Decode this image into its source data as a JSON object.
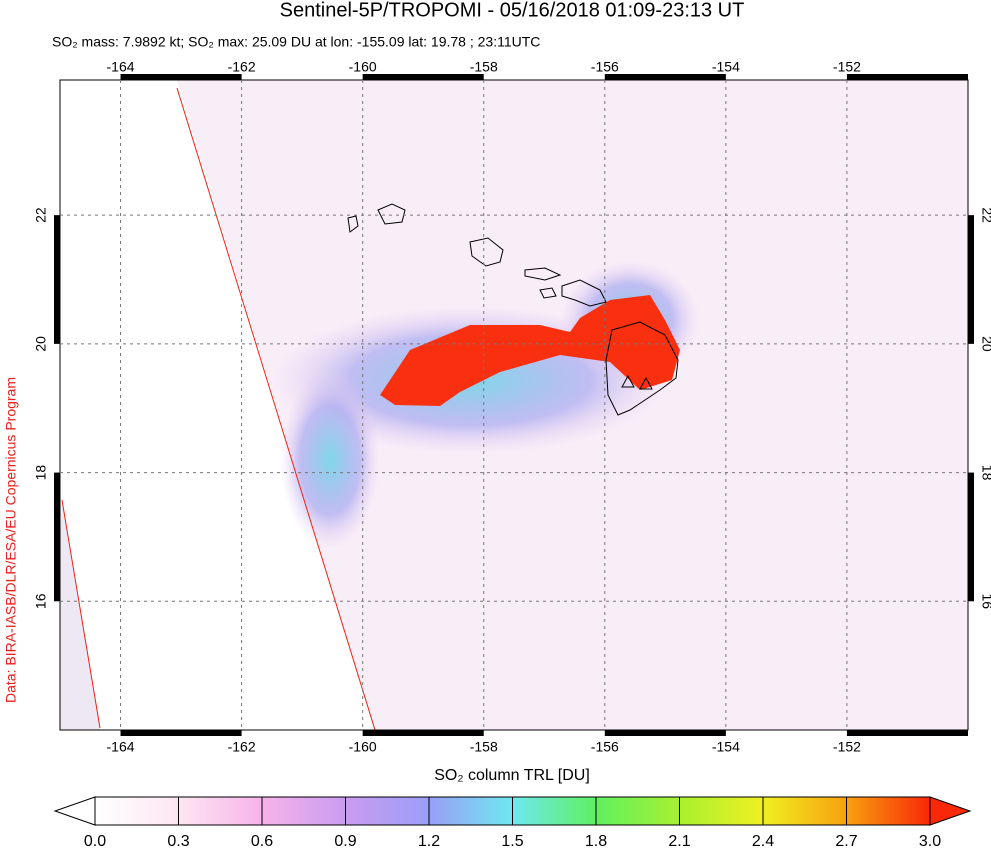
{
  "title": "Sentinel-5P/TROPOMI - 05/16/2018 01:09-23:13 UT",
  "subtitle": "SO₂ mass: 7.9892 kt; SO₂ max: 25.09 DU at lon: -155.09 lat: 19.78 ; 23:11UTC",
  "credit": "Data: BIRA-IASB/DLR/ESA/EU Copernicus Program",
  "map": {
    "xlim": [
      -165,
      -150
    ],
    "ylim": [
      14,
      24.1
    ],
    "xticks": [
      -164,
      -162,
      -160,
      -158,
      -156,
      -154,
      -152
    ],
    "yticks": [
      16,
      18,
      20,
      22
    ]
  },
  "colorbar": {
    "label": "SO₂ column TRL [DU]",
    "range": [
      0,
      3
    ],
    "ticks": [
      {
        "value": 0,
        "label": "0.0"
      },
      0.3,
      0.6,
      0.9,
      1.2,
      1.5,
      1.8,
      2.1,
      2.4,
      2.7,
      {
        "value": 3,
        "label": "3.0"
      }
    ]
  }
}
